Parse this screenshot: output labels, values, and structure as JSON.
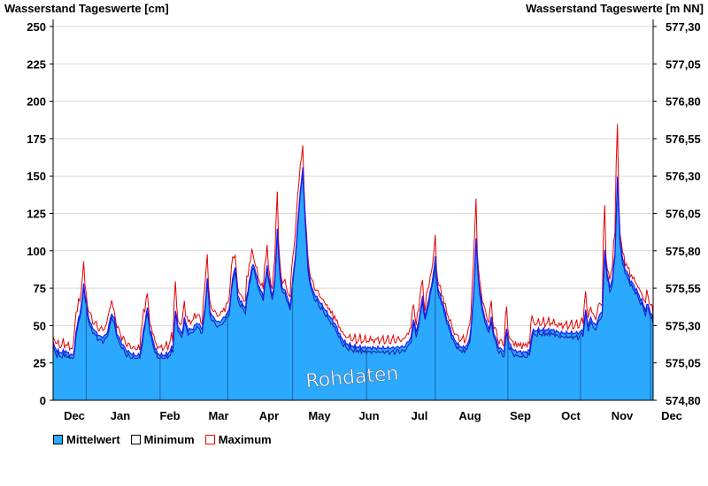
{
  "chart_data": {
    "type": "area",
    "ylabel_left": "Wasserstand Tageswerte [cm]",
    "ylabel_right": "Wasserstand Tageswerte [m NN]",
    "ylim": [
      0,
      250
    ],
    "yticks_left": [
      "0",
      "25",
      "50",
      "75",
      "100",
      "125",
      "150",
      "175",
      "200",
      "225",
      "250"
    ],
    "yticks_right": [
      "574,80",
      "575,05",
      "575,30",
      "575,55",
      "575,80",
      "576,05",
      "576,30",
      "576,55",
      "576,80",
      "577,05",
      "577,30"
    ],
    "x_labels": [
      "Dec",
      "Jan",
      "Feb",
      "Mar",
      "Apr",
      "May",
      "Jun",
      "Jul",
      "Aug",
      "Sep",
      "Oct",
      "Nov",
      "Dec"
    ],
    "x_label_days": [
      12,
      68,
      127,
      186,
      247,
      307,
      367,
      428,
      489,
      549,
      610,
      671,
      731
    ],
    "month_boundaries_days": [
      0,
      31,
      62,
      92,
      121,
      152,
      182,
      213,
      243,
      274,
      305,
      335,
      366
    ],
    "grid": true,
    "watermark": "Rohdaten",
    "legend": [
      {
        "name": "Mittelwert",
        "color": "#2aa9ff"
      },
      {
        "name": "Minimum",
        "color": "#ffffff"
      },
      {
        "name": "Maximum",
        "color": "#ff0000"
      }
    ],
    "mean_keyframes": [
      [
        0,
        38
      ],
      [
        3,
        33
      ],
      [
        6,
        32
      ],
      [
        10,
        33
      ],
      [
        12,
        31
      ],
      [
        16,
        30
      ],
      [
        18,
        45
      ],
      [
        20,
        55
      ],
      [
        22,
        62
      ],
      [
        24,
        78
      ],
      [
        26,
        65
      ],
      [
        28,
        55
      ],
      [
        30,
        50
      ],
      [
        34,
        45
      ],
      [
        38,
        42
      ],
      [
        42,
        44
      ],
      [
        46,
        58
      ],
      [
        48,
        55
      ],
      [
        50,
        45
      ],
      [
        54,
        38
      ],
      [
        58,
        33
      ],
      [
        62,
        31
      ],
      [
        65,
        30
      ],
      [
        68,
        30
      ],
      [
        72,
        52
      ],
      [
        74,
        62
      ],
      [
        76,
        48
      ],
      [
        79,
        38
      ],
      [
        82,
        31
      ],
      [
        86,
        30
      ],
      [
        90,
        31
      ],
      [
        94,
        36
      ],
      [
        96,
        60
      ],
      [
        98,
        50
      ],
      [
        101,
        44
      ],
      [
        103,
        55
      ],
      [
        106,
        47
      ],
      [
        110,
        48
      ],
      [
        113,
        52
      ],
      [
        117,
        48
      ],
      [
        119,
        60
      ],
      [
        121,
        82
      ],
      [
        123,
        60
      ],
      [
        126,
        55
      ],
      [
        130,
        52
      ],
      [
        134,
        55
      ],
      [
        138,
        60
      ],
      [
        141,
        82
      ],
      [
        143,
        90
      ],
      [
        145,
        70
      ],
      [
        148,
        65
      ],
      [
        151,
        62
      ],
      [
        154,
        80
      ],
      [
        157,
        92
      ],
      [
        160,
        82
      ],
      [
        162,
        75
      ],
      [
        165,
        70
      ],
      [
        168,
        90
      ],
      [
        170,
        78
      ],
      [
        172,
        70
      ],
      [
        174,
        80
      ],
      [
        176,
        115
      ],
      [
        178,
        85
      ],
      [
        180,
        75
      ],
      [
        183,
        72
      ],
      [
        186,
        62
      ],
      [
        188,
        80
      ],
      [
        190,
        95
      ],
      [
        192,
        118
      ],
      [
        194,
        140
      ],
      [
        196,
        155
      ],
      [
        198,
        120
      ],
      [
        200,
        90
      ],
      [
        203,
        75
      ],
      [
        206,
        70
      ],
      [
        210,
        65
      ],
      [
        214,
        60
      ],
      [
        218,
        55
      ],
      [
        222,
        50
      ],
      [
        226,
        42
      ],
      [
        230,
        38
      ],
      [
        236,
        36
      ],
      [
        246,
        35
      ],
      [
        256,
        35
      ],
      [
        266,
        35
      ],
      [
        276,
        36
      ],
      [
        281,
        42
      ],
      [
        283,
        55
      ],
      [
        285,
        45
      ],
      [
        288,
        58
      ],
      [
        290,
        70
      ],
      [
        292,
        55
      ],
      [
        294,
        65
      ],
      [
        296,
        72
      ],
      [
        298,
        82
      ],
      [
        300,
        95
      ],
      [
        302,
        75
      ],
      [
        304,
        70
      ],
      [
        306,
        65
      ],
      [
        308,
        58
      ],
      [
        310,
        52
      ],
      [
        312,
        48
      ],
      [
        314,
        42
      ],
      [
        318,
        37
      ],
      [
        322,
        35
      ],
      [
        326,
        38
      ],
      [
        328,
        48
      ],
      [
        330,
        70
      ],
      [
        332,
        108
      ],
      [
        334,
        80
      ],
      [
        337,
        62
      ],
      [
        340,
        52
      ],
      [
        342,
        48
      ],
      [
        344,
        55
      ],
      [
        346,
        45
      ],
      [
        350,
        35
      ],
      [
        354,
        33
      ],
      [
        356,
        48
      ],
      [
        358,
        38
      ],
      [
        362,
        33
      ],
      [
        370,
        32
      ],
      [
        374,
        33
      ],
      [
        376,
        46
      ],
      [
        380,
        47
      ],
      [
        386,
        47
      ],
      [
        392,
        47
      ],
      [
        398,
        45
      ],
      [
        406,
        45
      ],
      [
        412,
        45
      ],
      [
        416,
        47
      ],
      [
        418,
        60
      ],
      [
        420,
        50
      ],
      [
        422,
        55
      ],
      [
        424,
        52
      ],
      [
        426,
        50
      ],
      [
        428,
        55
      ],
      [
        431,
        60
      ],
      [
        433,
        100
      ],
      [
        435,
        85
      ],
      [
        437,
        75
      ],
      [
        439,
        82
      ],
      [
        441,
        98
      ],
      [
        443,
        150
      ],
      [
        445,
        108
      ],
      [
        447,
        95
      ],
      [
        449,
        88
      ],
      [
        451,
        85
      ],
      [
        453,
        80
      ],
      [
        455,
        78
      ],
      [
        457,
        75
      ],
      [
        459,
        72
      ],
      [
        461,
        68
      ],
      [
        463,
        65
      ],
      [
        465,
        60
      ],
      [
        467,
        65
      ],
      [
        469,
        58
      ],
      [
        471,
        55
      ]
    ],
    "day_span": 471
  }
}
